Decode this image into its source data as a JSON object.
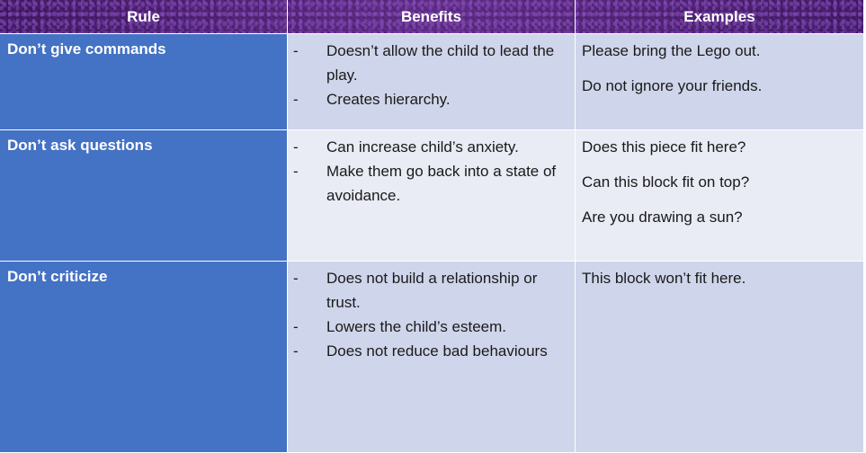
{
  "header": {
    "rule": "Rule",
    "benefits": "Benefits",
    "examples": "Examples"
  },
  "rows": [
    {
      "rule": "Don’t give commands",
      "benefits": [
        "Doesn’t allow the child to lead the play.",
        "Creates hierarchy."
      ],
      "examples": [
        "Please bring the Lego out.",
        "Do not ignore your friends."
      ]
    },
    {
      "rule": "Don’t ask questions",
      "benefits": [
        "Can increase child’s anxiety.",
        "Make them go back into a state of avoidance."
      ],
      "examples": [
        "Does this piece fit here?",
        "Can this block fit on top?",
        "Are you drawing a sun?"
      ]
    },
    {
      "rule": "Don’t criticize",
      "benefits": [
        "Does not build a relationship or trust.",
        "Lowers the child’s esteem.",
        "Does not reduce bad behaviours"
      ],
      "examples": [
        "This block won’t fit here."
      ]
    }
  ],
  "bullet_marker": "-"
}
